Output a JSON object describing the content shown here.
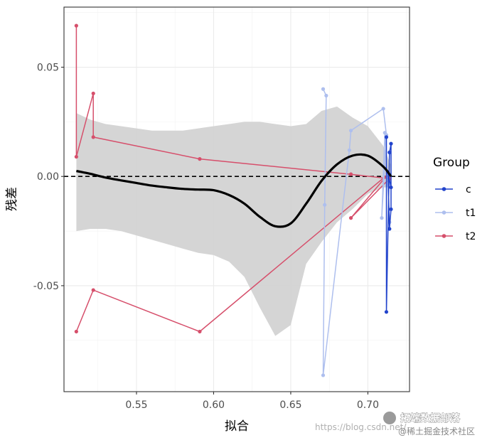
{
  "chart_data": {
    "type": "line",
    "xlabel": "拟合",
    "ylabel": "残差",
    "xlim": [
      0.503,
      0.727
    ],
    "ylim": [
      -0.0985,
      0.0775
    ],
    "x_ticks": [
      0.55,
      0.6,
      0.65,
      0.7
    ],
    "x_tick_labels": [
      "0.55",
      "0.60",
      "0.65",
      "0.70"
    ],
    "y_ticks": [
      -0.05,
      0.0,
      0.05
    ],
    "y_tick_labels": [
      "-0.05",
      "0.00",
      "0.05"
    ],
    "grid": true,
    "reference_line": {
      "y": 0,
      "style": "dashed"
    },
    "legend": {
      "title": "Group",
      "position": "right",
      "entries": [
        "c",
        "t1",
        "t2"
      ]
    },
    "colors": {
      "c": "#2244cc",
      "t1": "#aebfee",
      "t2": "#d64f6b",
      "smooth": "#000000",
      "ribbon": "#d3d3d3"
    },
    "series": [
      {
        "name": "t2",
        "points": [
          [
            0.511,
            0.069
          ],
          [
            0.511,
            0.009
          ],
          [
            0.522,
            0.038
          ],
          [
            0.522,
            0.018
          ],
          [
            0.591,
            0.008
          ],
          [
            0.689,
            0.001
          ],
          [
            0.714,
            -0.001
          ],
          [
            0.689,
            -0.019
          ],
          [
            0.713,
            0.001
          ],
          [
            0.591,
            -0.071
          ],
          [
            0.522,
            -0.052
          ],
          [
            0.511,
            -0.071
          ]
        ]
      },
      {
        "name": "t1",
        "points": [
          [
            0.671,
            0.04
          ],
          [
            0.673,
            0.037
          ],
          [
            0.672,
            -0.013
          ],
          [
            0.671,
            -0.091
          ],
          [
            0.688,
            0.012
          ],
          [
            0.689,
            0.021
          ],
          [
            0.71,
            0.031
          ],
          [
            0.712,
            0.019
          ],
          [
            0.709,
            -0.019
          ],
          [
            0.711,
            0.02
          ],
          [
            0.713,
            -0.004
          ],
          [
            0.714,
            -0.021
          ]
        ]
      },
      {
        "name": "c",
        "points": [
          [
            0.712,
            0.018
          ],
          [
            0.712,
            -0.062
          ],
          [
            0.714,
            0.011
          ],
          [
            0.715,
            0.015
          ],
          [
            0.715,
            -0.015
          ],
          [
            0.714,
            -0.024
          ],
          [
            0.713,
            0.002
          ],
          [
            0.715,
            -0.005
          ]
        ]
      }
    ],
    "smooth": {
      "x": [
        0.511,
        0.52,
        0.53,
        0.54,
        0.55,
        0.56,
        0.57,
        0.58,
        0.59,
        0.6,
        0.61,
        0.62,
        0.63,
        0.64,
        0.65,
        0.66,
        0.67,
        0.68,
        0.69,
        0.7,
        0.71,
        0.715
      ],
      "y": [
        0.0025,
        0.0012,
        -0.0005,
        -0.0018,
        -0.003,
        -0.0042,
        -0.005,
        -0.0057,
        -0.006,
        -0.0063,
        -0.0085,
        -0.0125,
        -0.0185,
        -0.0228,
        -0.0215,
        -0.0125,
        -0.002,
        0.0055,
        0.0095,
        0.0095,
        0.0045,
        0.0
      ],
      "upper": [
        0.029,
        0.026,
        0.024,
        0.023,
        0.022,
        0.021,
        0.021,
        0.021,
        0.022,
        0.023,
        0.024,
        0.025,
        0.025,
        0.024,
        0.023,
        0.024,
        0.03,
        0.032,
        0.027,
        0.023,
        0.014,
        0.005
      ],
      "lower": [
        -0.025,
        -0.024,
        -0.024,
        -0.025,
        -0.027,
        -0.029,
        -0.031,
        -0.033,
        -0.035,
        -0.036,
        -0.039,
        -0.046,
        -0.06,
        -0.073,
        -0.068,
        -0.04,
        -0.03,
        -0.021,
        -0.015,
        -0.008,
        -0.005,
        -0.005
      ]
    }
  },
  "watermark": {
    "url_text": "https://blog.csdn.net/",
    "brand_text": "拓端数据部落",
    "sub_text": "@稀土掘金技术社区"
  }
}
